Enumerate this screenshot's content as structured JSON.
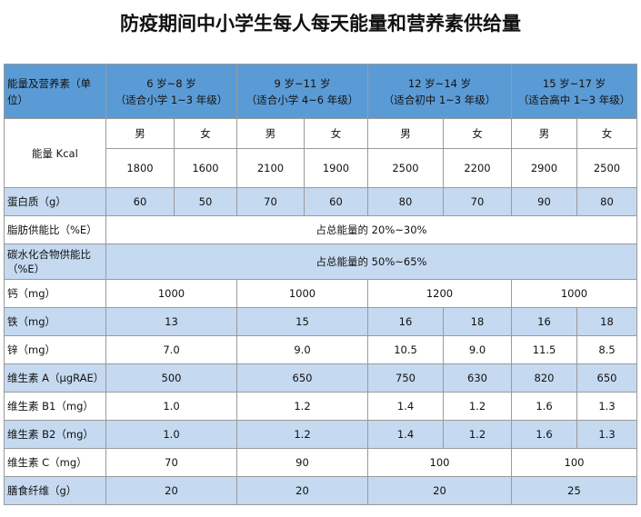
{
  "title": "防疫期间中小学生每人每天能量和营养素供给量",
  "table": {
    "header": {
      "label": "能量及营养素（单位）",
      "groups": [
        {
          "age": "6 岁~8 岁",
          "grade": "（适合小学 1~3 年级）"
        },
        {
          "age": "9 岁~11 岁",
          "grade": "（适合小学 4~6 年级）"
        },
        {
          "age": "12 岁~14 岁",
          "grade": "（适合初中 1~3 年级）"
        },
        {
          "age": "15 岁~17 岁",
          "grade": "（适合高中 1~3 年级）"
        }
      ]
    },
    "energy": {
      "label": "能量 Kcal",
      "sexes": [
        "男",
        "女",
        "男",
        "女",
        "男",
        "女",
        "男",
        "女"
      ],
      "values": [
        "1800",
        "1600",
        "2100",
        "1900",
        "2500",
        "2200",
        "2900",
        "2500"
      ]
    },
    "rows": [
      {
        "label": "蛋白质（g）",
        "cells": [
          "60",
          "50",
          "70",
          "60",
          "80",
          "70",
          "90",
          "80"
        ]
      },
      {
        "label": "脂肪供能比（%E）",
        "cells": [
          "占总能量的 20%~30%"
        ]
      },
      {
        "label": "碳水化合物供能比（%E）",
        "cells": [
          "占总能量的 50%~65%"
        ]
      },
      {
        "label": "钙（mg）",
        "cells": [
          "1000",
          "1000",
          "1200",
          "1000"
        ]
      },
      {
        "label": "铁（mg）",
        "cells": [
          "13",
          "15",
          "16",
          "18",
          "16",
          "18"
        ]
      },
      {
        "label": "锌（mg）",
        "cells": [
          "7.0",
          "9.0",
          "10.5",
          "9.0",
          "11.5",
          "8.5"
        ]
      },
      {
        "label": "维生素 A（μgRAE）",
        "cells": [
          "500",
          "650",
          "750",
          "630",
          "820",
          "650"
        ]
      },
      {
        "label": "维生素 B1（mg）",
        "cells": [
          "1.0",
          "1.2",
          "1.4",
          "1.2",
          "1.6",
          "1.3"
        ]
      },
      {
        "label": "维生素 B2（mg）",
        "cells": [
          "1.0",
          "1.2",
          "1.4",
          "1.2",
          "1.6",
          "1.3"
        ]
      },
      {
        "label": "维生素 C（mg）",
        "cells": [
          "70",
          "90",
          "100",
          "100"
        ]
      },
      {
        "label": "膳食纤维（g）",
        "cells": [
          "20",
          "20",
          "20",
          "25"
        ]
      }
    ]
  }
}
